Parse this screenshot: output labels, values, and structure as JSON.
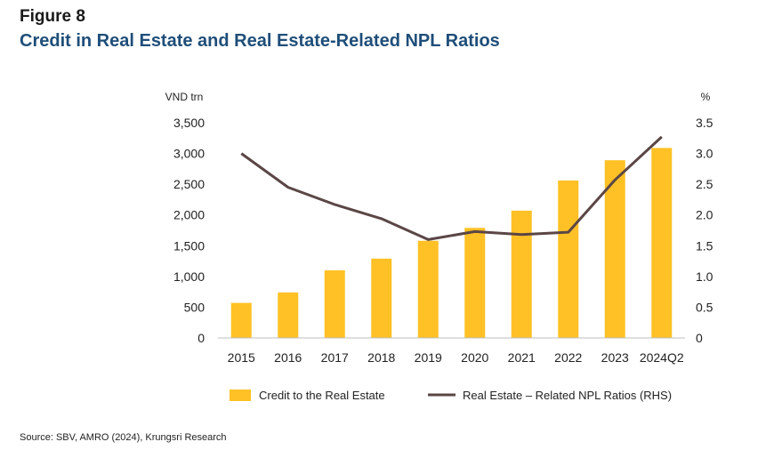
{
  "figure_label": "Figure 8",
  "figure_title": "Credit in Real Estate and Real Estate-Related NPL Ratios",
  "source": "Source: SBV, AMRO (2024), Krungsri Research",
  "colors": {
    "bar": "#FFC125",
    "line": "#5B4646",
    "title": "#1F4E79"
  },
  "chart_data": {
    "type": "bar",
    "categories": [
      "2015",
      "2016",
      "2017",
      "2018",
      "2019",
      "2020",
      "2021",
      "2022",
      "2023",
      "2024Q2"
    ],
    "series": [
      {
        "name": "Credit to the Real Estate",
        "type": "bar",
        "axis": "left",
        "values": [
          570,
          740,
          1100,
          1290,
          1580,
          1790,
          2070,
          2560,
          2890,
          3090
        ]
      },
      {
        "name": "Real Estate – Related NPL Ratios (RHS)",
        "type": "line",
        "axis": "right",
        "values": [
          3.0,
          2.45,
          2.17,
          1.94,
          1.6,
          1.73,
          1.68,
          1.72,
          2.57,
          3.27
        ]
      }
    ],
    "ylabel_left": "VND trn",
    "ylabel_right": "%",
    "ylim_left": [
      0,
      3500
    ],
    "ylim_right": [
      0,
      3.5
    ],
    "yticks_left": [
      "0",
      "500",
      "1,000",
      "1,500",
      "2,000",
      "2,500",
      "3,000",
      "3,500"
    ],
    "yticks_right": [
      "0",
      "0.5",
      "1.0",
      "1.5",
      "2.0",
      "2.5",
      "3.0",
      "3.5"
    ],
    "grid": false,
    "legend_position": "bottom"
  }
}
